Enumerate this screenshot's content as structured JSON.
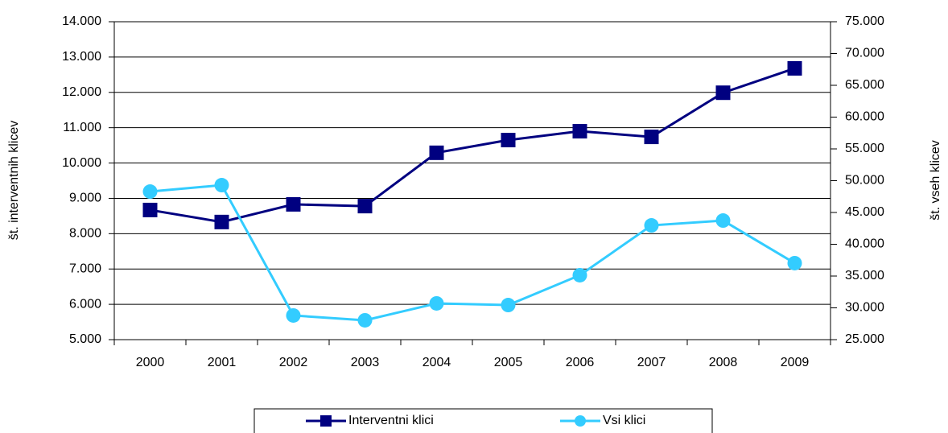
{
  "chart_data": {
    "type": "line",
    "categories": [
      "2000",
      "2001",
      "2002",
      "2003",
      "2004",
      "2005",
      "2006",
      "2007",
      "2008",
      "2009"
    ],
    "y_label": "št. interventnih klicev",
    "y2_label": "št. vseh klicev",
    "series": [
      {
        "name": "Interventni klici",
        "color": "#000080",
        "marker": "square",
        "values": [
          8670,
          8330,
          8830,
          8780,
          10290,
          10650,
          10900,
          10740,
          11990,
          12680
        ]
      },
      {
        "name": "Vsi klici",
        "color": "#33ccff",
        "marker": "circle",
        "axis": "y2",
        "values": [
          48290,
          49300,
          28800,
          28040,
          30700,
          30440,
          35130,
          42970,
          43730,
          37030
        ]
      }
    ],
    "ylim": [
      5000,
      14000
    ],
    "yticks": [
      {
        "value": 5000,
        "label": "5.000"
      },
      {
        "value": 6000,
        "label": "6.000"
      },
      {
        "value": 7000,
        "label": "7.000"
      },
      {
        "value": 8000,
        "label": "8.000"
      },
      {
        "value": 9000,
        "label": "9.000"
      },
      {
        "value": 10000,
        "label": "10.000"
      },
      {
        "value": 11000,
        "label": "11.000"
      },
      {
        "value": 12000,
        "label": "12.000"
      },
      {
        "value": 13000,
        "label": "13.000"
      },
      {
        "value": 14000,
        "label": "14.000"
      }
    ],
    "y2lim": [
      25000,
      75000
    ],
    "y2ticks": [
      {
        "value": 25000,
        "label": "25.000"
      },
      {
        "value": 30000,
        "label": "30.000"
      },
      {
        "value": 35000,
        "label": "35.000"
      },
      {
        "value": 40000,
        "label": "40.000"
      },
      {
        "value": 45000,
        "label": "45.000"
      },
      {
        "value": 50000,
        "label": "50.000"
      },
      {
        "value": 55000,
        "label": "55.000"
      },
      {
        "value": 60000,
        "label": "60.000"
      },
      {
        "value": 65000,
        "label": "65.000"
      },
      {
        "value": 70000,
        "label": "70.000"
      },
      {
        "value": 75000,
        "label": "75.000"
      }
    ],
    "grid": true,
    "legend": "bottom"
  }
}
